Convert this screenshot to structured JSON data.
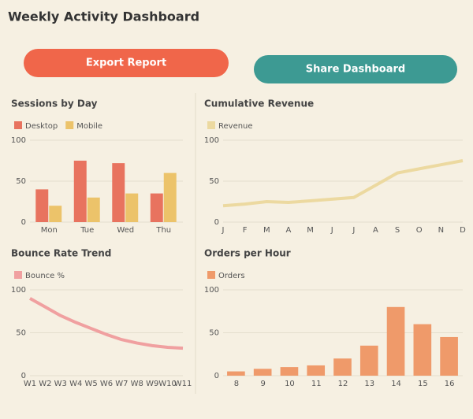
{
  "title": "Weekly Activity Dashboard",
  "buttons": [
    "Export Report",
    "Share Dashboard"
  ],
  "chart_data": [
    {
      "type": "bar",
      "title": "Sessions by Day",
      "categories": [
        "Mon",
        "Tue",
        "Wed",
        "Thu"
      ],
      "series": [
        {
          "name": "Desktop",
          "color": "#e8735f",
          "values": [
            40,
            75,
            72,
            35
          ]
        },
        {
          "name": "Mobile",
          "color": "#ecc36a",
          "values": [
            20,
            30,
            35,
            60
          ]
        }
      ],
      "ylim": [
        0,
        100
      ],
      "yticks": [
        0,
        50,
        100
      ],
      "grid": true
    },
    {
      "type": "line",
      "title": "Bounce Rate Trend",
      "categories": [
        "W1",
        "W2",
        "W3",
        "W4",
        "W5",
        "W6",
        "W7",
        "W8",
        "W9",
        "W10",
        "W11"
      ],
      "series": [
        {
          "name": "Bounce %",
          "color": "#f0a0a0",
          "values": [
            90,
            80,
            70,
            62,
            55,
            48,
            42,
            38,
            35,
            33,
            32
          ]
        }
      ],
      "ylim": [
        0,
        100
      ],
      "yticks": [
        0,
        50,
        100
      ],
      "grid": true
    },
    {
      "type": "line",
      "title": "Cumulative Revenue",
      "categories": [
        "J",
        "F",
        "M",
        "A",
        "M",
        "J",
        "J",
        "A",
        "S",
        "O",
        "N",
        "D"
      ],
      "series": [
        {
          "name": "Revenue",
          "color": "#ecd9a0",
          "values": [
            20,
            22,
            25,
            24,
            26,
            28,
            30,
            45,
            60,
            65,
            70,
            75
          ]
        }
      ],
      "ylim": [
        0,
        100
      ],
      "yticks": [
        0,
        50,
        100
      ],
      "grid": true
    },
    {
      "type": "bar",
      "title": "Orders per Hour",
      "categories": [
        "8",
        "9",
        "10",
        "11",
        "12",
        "13",
        "14",
        "15",
        "16"
      ],
      "series": [
        {
          "name": "Orders",
          "color": "#ef9a6a",
          "values": [
            5,
            8,
            10,
            12,
            20,
            35,
            80,
            60,
            45
          ]
        }
      ],
      "ylim": [
        0,
        100
      ],
      "yticks": [
        0,
        50,
        100
      ],
      "grid": true
    }
  ]
}
